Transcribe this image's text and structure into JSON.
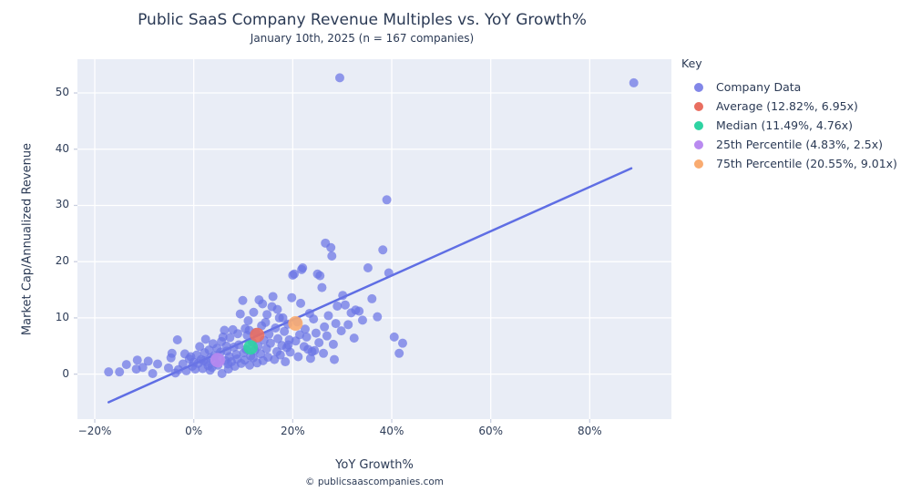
{
  "page": {
    "title": "Public SaaS Company Revenue Multiples vs. YoY Growth%",
    "subtitle": "January 10th, 2025 (n = 167 companies)",
    "footer": "© publicsaascompanies.com"
  },
  "legend": {
    "title": "Key",
    "items": [
      {
        "id": "company-data",
        "label": "Company Data",
        "color": "#8287e8"
      },
      {
        "id": "average",
        "label": "Average (12.82%, 6.95x)",
        "color": "#e96e60"
      },
      {
        "id": "median",
        "label": "Median (11.49%, 4.76x)",
        "color": "#2ed3a2"
      },
      {
        "id": "25th-percentile",
        "label": "25th Percentile (4.83%, 2.5x)",
        "color": "#b98af0"
      },
      {
        "id": "75th-percentile",
        "label": "75th Percentile (20.55%, 9.01x)",
        "color": "#f9ab70"
      }
    ]
  },
  "chart_data": {
    "type": "scatter",
    "title": "Public SaaS Company Revenue Multiples vs. YoY Growth%",
    "subtitle": "January 10th, 2025 (n = 167 companies)",
    "xlabel": "YoY Growth%",
    "ylabel": "Market Cap/Annualized Revenue",
    "xlim": [
      -23.5,
      96.5
    ],
    "ylim": [
      -8,
      56
    ],
    "grid": true,
    "legend_position": "right",
    "panel_bg": "#e9edf6",
    "grid_color": "#ffffff",
    "tick_color": "#c9cfe0",
    "point_color": "#6b74e4",
    "point_opacity": 0.72,
    "point_radius": 5,
    "x_ticks": {
      "values": [
        -20,
        0,
        20,
        40,
        60,
        80
      ],
      "labels": [
        "−20%",
        "0%",
        "20%",
        "40%",
        "60%",
        "80%"
      ]
    },
    "y_ticks": {
      "values": [
        0,
        10,
        20,
        30,
        40,
        50
      ],
      "labels": [
        "0",
        "10",
        "20",
        "30",
        "40",
        "50"
      ]
    },
    "trendline": {
      "color": "#5f6ee4",
      "width": 2.5,
      "x1": -17.2,
      "y1": -5.0,
      "x2": 88.4,
      "y2": 36.6
    },
    "markers": [
      {
        "id": "average",
        "x": 12.82,
        "y": 6.95,
        "color": "#e96e60",
        "radius": 8
      },
      {
        "id": "median",
        "x": 11.49,
        "y": 4.76,
        "color": "#2ed3a2",
        "radius": 8
      },
      {
        "id": "25th-percentile",
        "x": 4.83,
        "y": 2.5,
        "color": "#b98af0",
        "radius": 8
      },
      {
        "id": "75th-percentile",
        "x": 20.55,
        "y": 9.01,
        "color": "#f9ab70",
        "radius": 8
      }
    ],
    "series": [
      {
        "name": "Company Data",
        "points": [
          [
            -17.2,
            0.4
          ],
          [
            -15.0,
            0.4
          ],
          [
            -13.6,
            1.7
          ],
          [
            -11.6,
            0.9
          ],
          [
            -11.4,
            2.5
          ],
          [
            -10.3,
            1.2
          ],
          [
            -9.2,
            2.3
          ],
          [
            -8.3,
            0.1
          ],
          [
            -7.3,
            1.8
          ],
          [
            -5.1,
            1.1
          ],
          [
            -4.6,
            2.9
          ],
          [
            -4.4,
            3.7
          ],
          [
            -3.7,
            0.2
          ],
          [
            -3.3,
            6.1
          ],
          [
            -3.1,
            0.8
          ],
          [
            -2.2,
            1.8
          ],
          [
            -1.8,
            3.6
          ],
          [
            -1.5,
            0.6
          ],
          [
            -0.9,
            2.7
          ],
          [
            -0.6,
            3.1
          ],
          [
            -0.3,
            1.4
          ],
          [
            0.0,
            2.1
          ],
          [
            0.3,
            0.9
          ],
          [
            0.6,
            3.4
          ],
          [
            0.9,
            1.9
          ],
          [
            1.2,
            4.9
          ],
          [
            1.5,
            2.6
          ],
          [
            1.8,
            1.0
          ],
          [
            2.0,
            2.4
          ],
          [
            2.2,
            3.8
          ],
          [
            2.4,
            6.2
          ],
          [
            2.6,
            2.2
          ],
          [
            2.9,
            1.5
          ],
          [
            3.1,
            4.3
          ],
          [
            3.3,
            0.7
          ],
          [
            3.4,
            2.9
          ],
          [
            3.7,
            1.2
          ],
          [
            3.9,
            5.4
          ],
          [
            4.2,
            3.3
          ],
          [
            4.4,
            2.0
          ],
          [
            4.7,
            4.6
          ],
          [
            4.9,
            1.6
          ],
          [
            5.1,
            2.8
          ],
          [
            5.4,
            3.9
          ],
          [
            5.6,
            5.8
          ],
          [
            5.7,
            0.1
          ],
          [
            5.9,
            6.6
          ],
          [
            6.2,
            7.8
          ],
          [
            6.4,
            2.4
          ],
          [
            6.6,
            5.0
          ],
          [
            6.7,
            4.1
          ],
          [
            6.9,
            1.8
          ],
          [
            7.0,
            0.9
          ],
          [
            7.2,
            3.1
          ],
          [
            7.3,
            6.5
          ],
          [
            7.6,
            2.2
          ],
          [
            7.9,
            7.9
          ],
          [
            8.1,
            4.8
          ],
          [
            8.3,
            1.4
          ],
          [
            8.6,
            3.5
          ],
          [
            8.8,
            2.7
          ],
          [
            8.9,
            7.2
          ],
          [
            9.1,
            5.2
          ],
          [
            9.4,
            10.7
          ],
          [
            9.6,
            1.9
          ],
          [
            9.9,
            13.1
          ],
          [
            10.1,
            3.8
          ],
          [
            10.3,
            2.5
          ],
          [
            10.4,
            8.1
          ],
          [
            10.6,
            4.4
          ],
          [
            10.8,
            6.9
          ],
          [
            11.0,
            9.5
          ],
          [
            11.2,
            7.8
          ],
          [
            11.3,
            1.6
          ],
          [
            11.5,
            3.2
          ],
          [
            11.8,
            5.7
          ],
          [
            12.0,
            2.9
          ],
          [
            12.1,
            11.0
          ],
          [
            12.3,
            4.2
          ],
          [
            12.5,
            7.4
          ],
          [
            12.8,
            2.0
          ],
          [
            13.0,
            5.0
          ],
          [
            13.2,
            13.2
          ],
          [
            13.5,
            3.6
          ],
          [
            13.7,
            8.6
          ],
          [
            13.9,
            12.5
          ],
          [
            14.0,
            2.4
          ],
          [
            14.2,
            6.0
          ],
          [
            14.5,
            9.2
          ],
          [
            14.7,
            4.5
          ],
          [
            14.8,
            10.6
          ],
          [
            15.0,
            3.0
          ],
          [
            15.2,
            7.1
          ],
          [
            15.5,
            5.5
          ],
          [
            15.8,
            12.0
          ],
          [
            16.0,
            13.8
          ],
          [
            16.3,
            2.6
          ],
          [
            16.5,
            8.2
          ],
          [
            16.8,
            4.0
          ],
          [
            16.9,
            11.5
          ],
          [
            17.0,
            6.3
          ],
          [
            17.3,
            10.0
          ],
          [
            17.5,
            3.4
          ],
          [
            17.8,
            5.1
          ],
          [
            18.0,
            10.0
          ],
          [
            18.3,
            7.6
          ],
          [
            18.5,
            2.2
          ],
          [
            18.8,
            4.7
          ],
          [
            19.0,
            8.9
          ],
          [
            19.1,
            5.2
          ],
          [
            19.3,
            6.1
          ],
          [
            19.5,
            3.9
          ],
          [
            19.8,
            13.6
          ],
          [
            20.0,
            17.6
          ],
          [
            20.3,
            17.8
          ],
          [
            20.6,
            5.9
          ],
          [
            20.9,
            9.3
          ],
          [
            21.1,
            3.1
          ],
          [
            21.4,
            7.0
          ],
          [
            21.6,
            12.6
          ],
          [
            21.8,
            18.6
          ],
          [
            22.0,
            18.9
          ],
          [
            22.3,
            4.9
          ],
          [
            22.5,
            8.0
          ],
          [
            22.8,
            6.6
          ],
          [
            23.1,
            4.4
          ],
          [
            23.4,
            10.8
          ],
          [
            23.6,
            2.8
          ],
          [
            23.9,
            4.0
          ],
          [
            24.2,
            9.8
          ],
          [
            24.4,
            4.2
          ],
          [
            24.7,
            7.3
          ],
          [
            25.0,
            17.8
          ],
          [
            25.3,
            5.6
          ],
          [
            25.5,
            17.5
          ],
          [
            25.9,
            15.4
          ],
          [
            26.2,
            3.7
          ],
          [
            26.4,
            8.4
          ],
          [
            26.6,
            23.3
          ],
          [
            26.9,
            6.8
          ],
          [
            27.2,
            10.4
          ],
          [
            27.7,
            22.5
          ],
          [
            27.9,
            21.0
          ],
          [
            28.2,
            5.3
          ],
          [
            28.4,
            2.6
          ],
          [
            28.7,
            9.0
          ],
          [
            29.0,
            12.1
          ],
          [
            29.5,
            52.7
          ],
          [
            29.8,
            7.7
          ],
          [
            30.1,
            14.0
          ],
          [
            30.6,
            12.3
          ],
          [
            31.2,
            8.8
          ],
          [
            31.8,
            10.9
          ],
          [
            32.4,
            6.4
          ],
          [
            32.7,
            11.4
          ],
          [
            33.4,
            11.2
          ],
          [
            34.1,
            9.6
          ],
          [
            35.2,
            18.9
          ],
          [
            36.0,
            13.4
          ],
          [
            37.1,
            10.2
          ],
          [
            38.2,
            22.1
          ],
          [
            39.0,
            31.0
          ],
          [
            39.4,
            18.0
          ],
          [
            40.5,
            6.6
          ],
          [
            41.5,
            3.7
          ],
          [
            42.2,
            5.5
          ],
          [
            88.9,
            51.8
          ]
        ]
      }
    ]
  }
}
